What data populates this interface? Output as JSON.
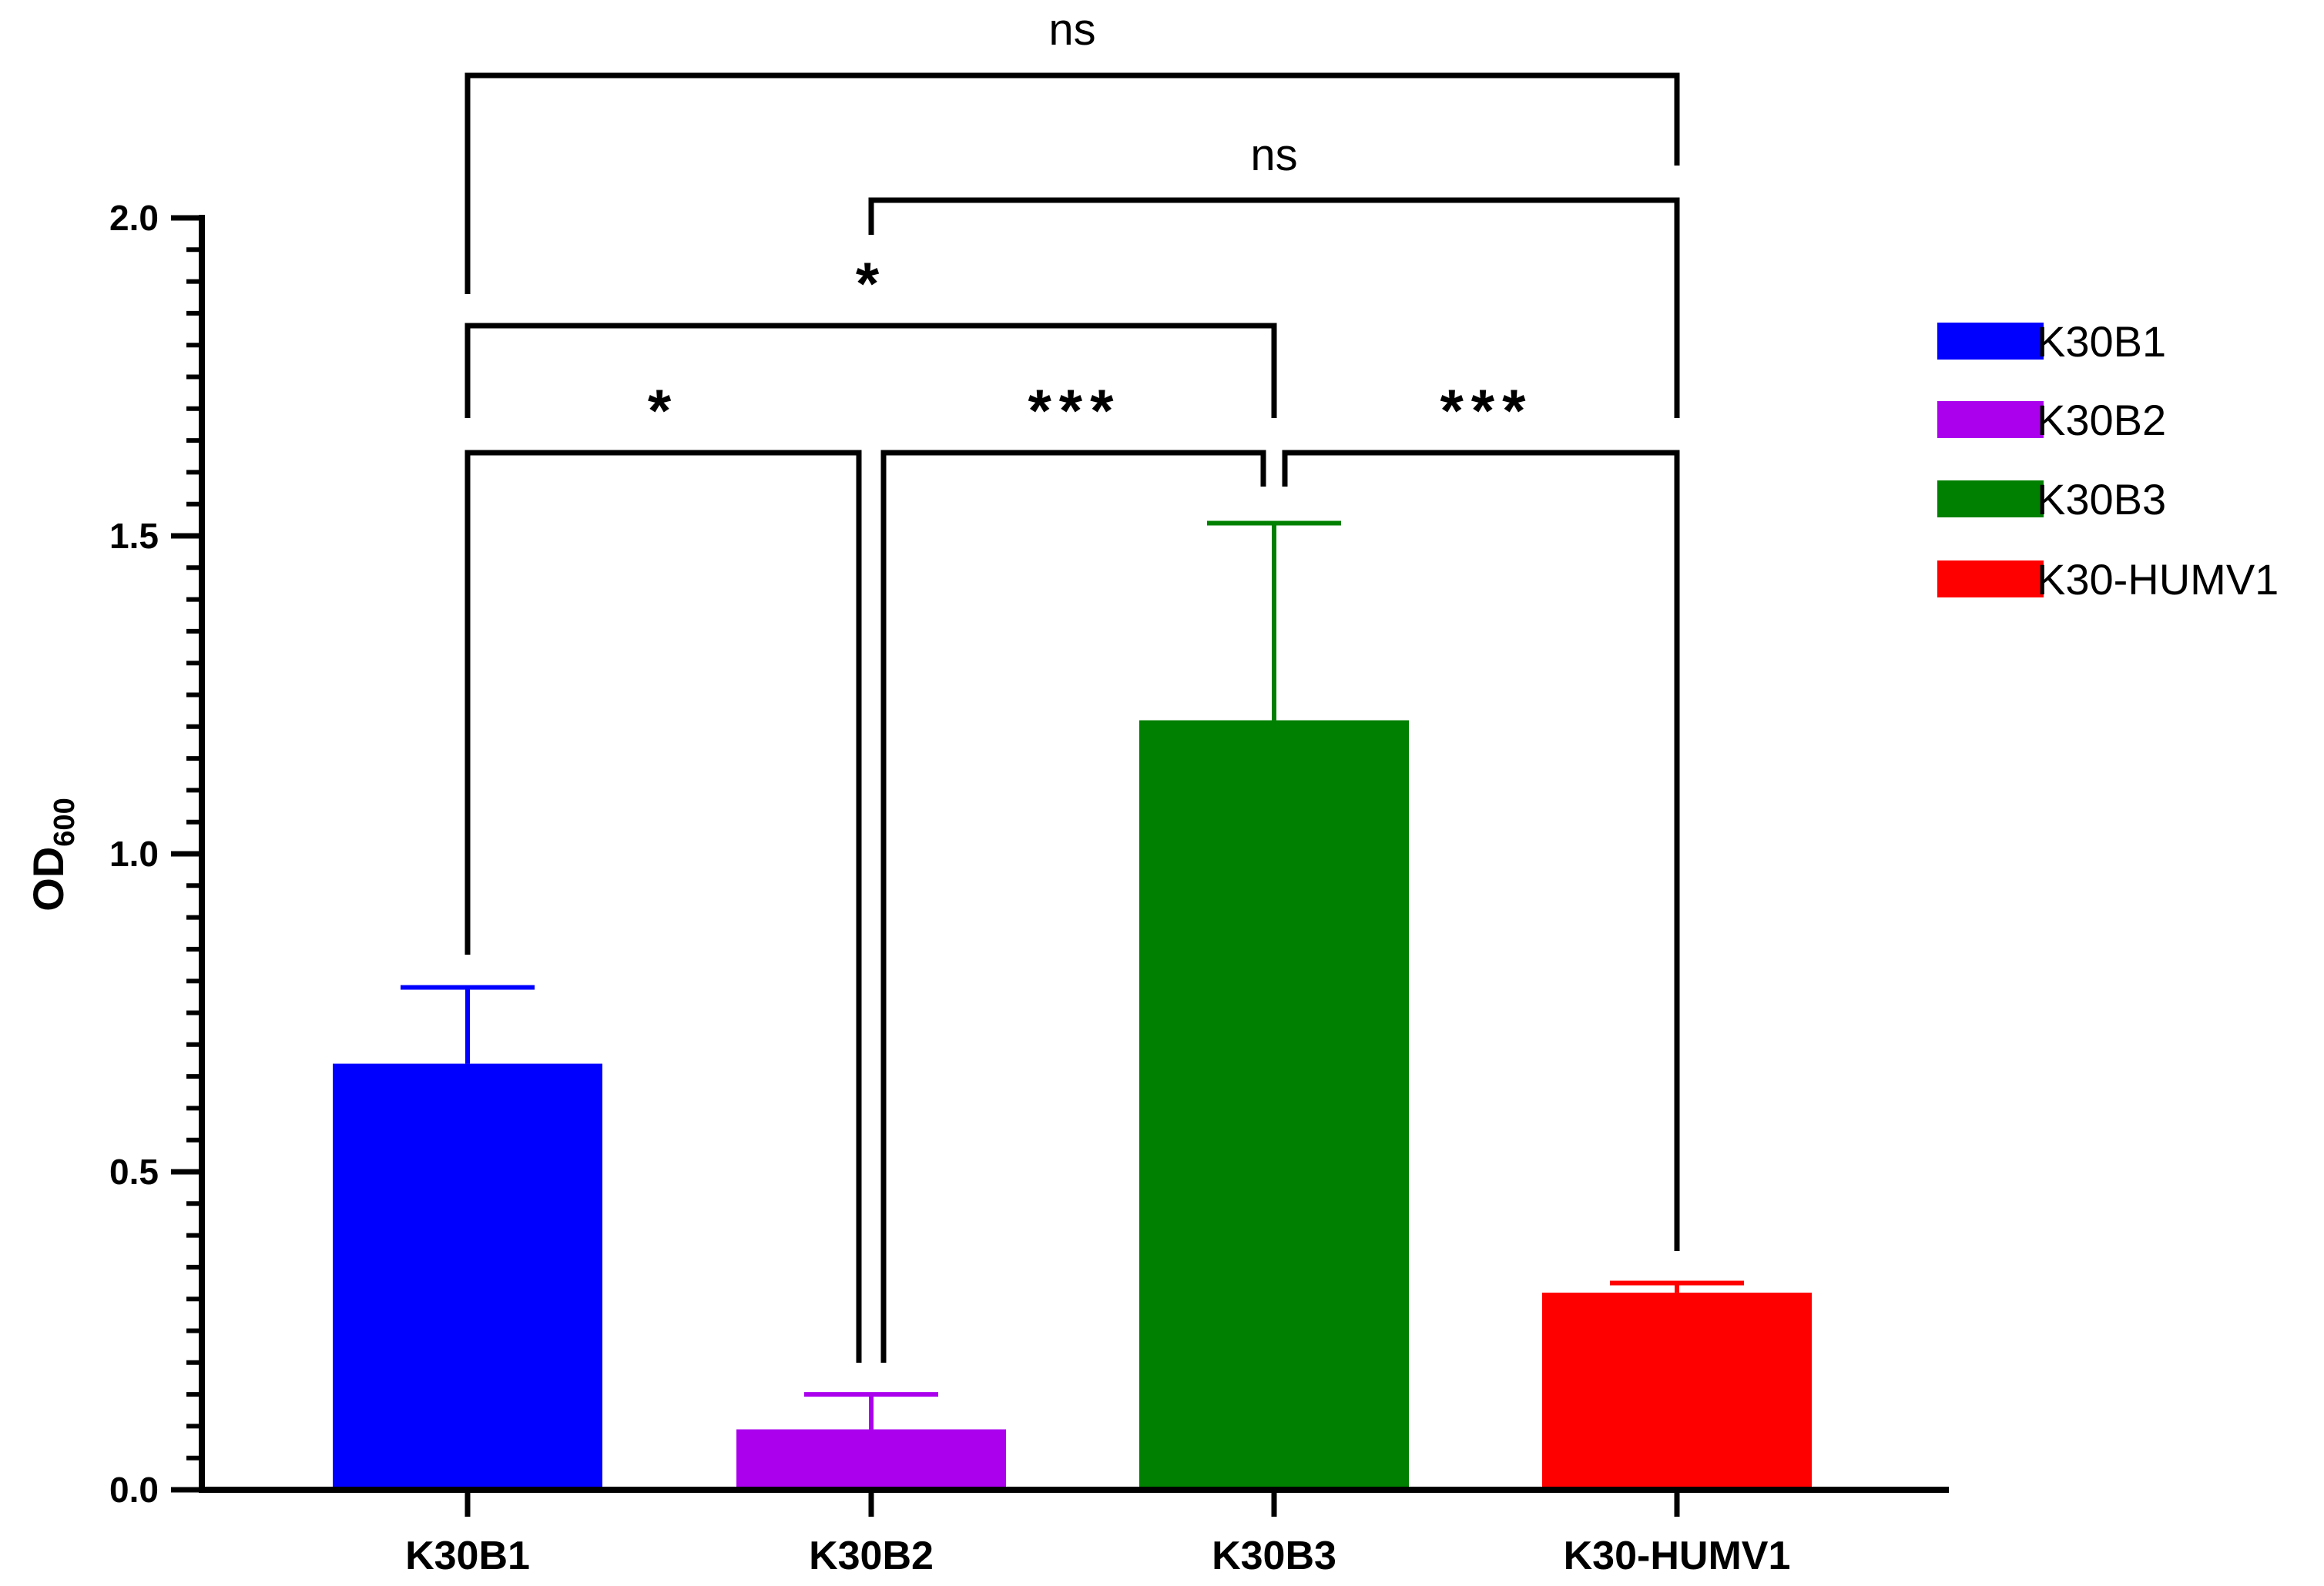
{
  "chart_data": {
    "type": "bar",
    "title": "",
    "xlabel": "",
    "ylabel": "OD",
    "ylabel_subscript": "600",
    "ylim": [
      0,
      2.0
    ],
    "yticks": [
      "0.0",
      "0.5",
      "1.0",
      "1.5",
      "2.0"
    ],
    "grid": false,
    "legend_position": "right",
    "categories": [
      "K30B1",
      "K30B2",
      "K30B3",
      "K30-HUMV1"
    ],
    "values": [
      0.67,
      0.095,
      1.21,
      0.31
    ],
    "errors": [
      0.12,
      0.055,
      0.31,
      0.015
    ],
    "colors": [
      "#0000FF",
      "#AA00EE",
      "#008000",
      "#FF0000"
    ],
    "legend": [
      "K30B1",
      "K30B2",
      "K30B3",
      "K30-HUMV1"
    ],
    "comparisons": [
      {
        "from": "K30B1",
        "to": "K30B2",
        "label": "*"
      },
      {
        "from": "K30B2",
        "to": "K30B3",
        "label": "***"
      },
      {
        "from": "K30B3",
        "to": "K30-HUMV1",
        "label": "***"
      },
      {
        "from": "K30B1",
        "to": "K30B3",
        "label": "*"
      },
      {
        "from": "K30B2",
        "to": "K30-HUMV1",
        "label": "ns"
      },
      {
        "from": "K30B1",
        "to": "K30-HUMV1",
        "label": "ns"
      }
    ]
  }
}
